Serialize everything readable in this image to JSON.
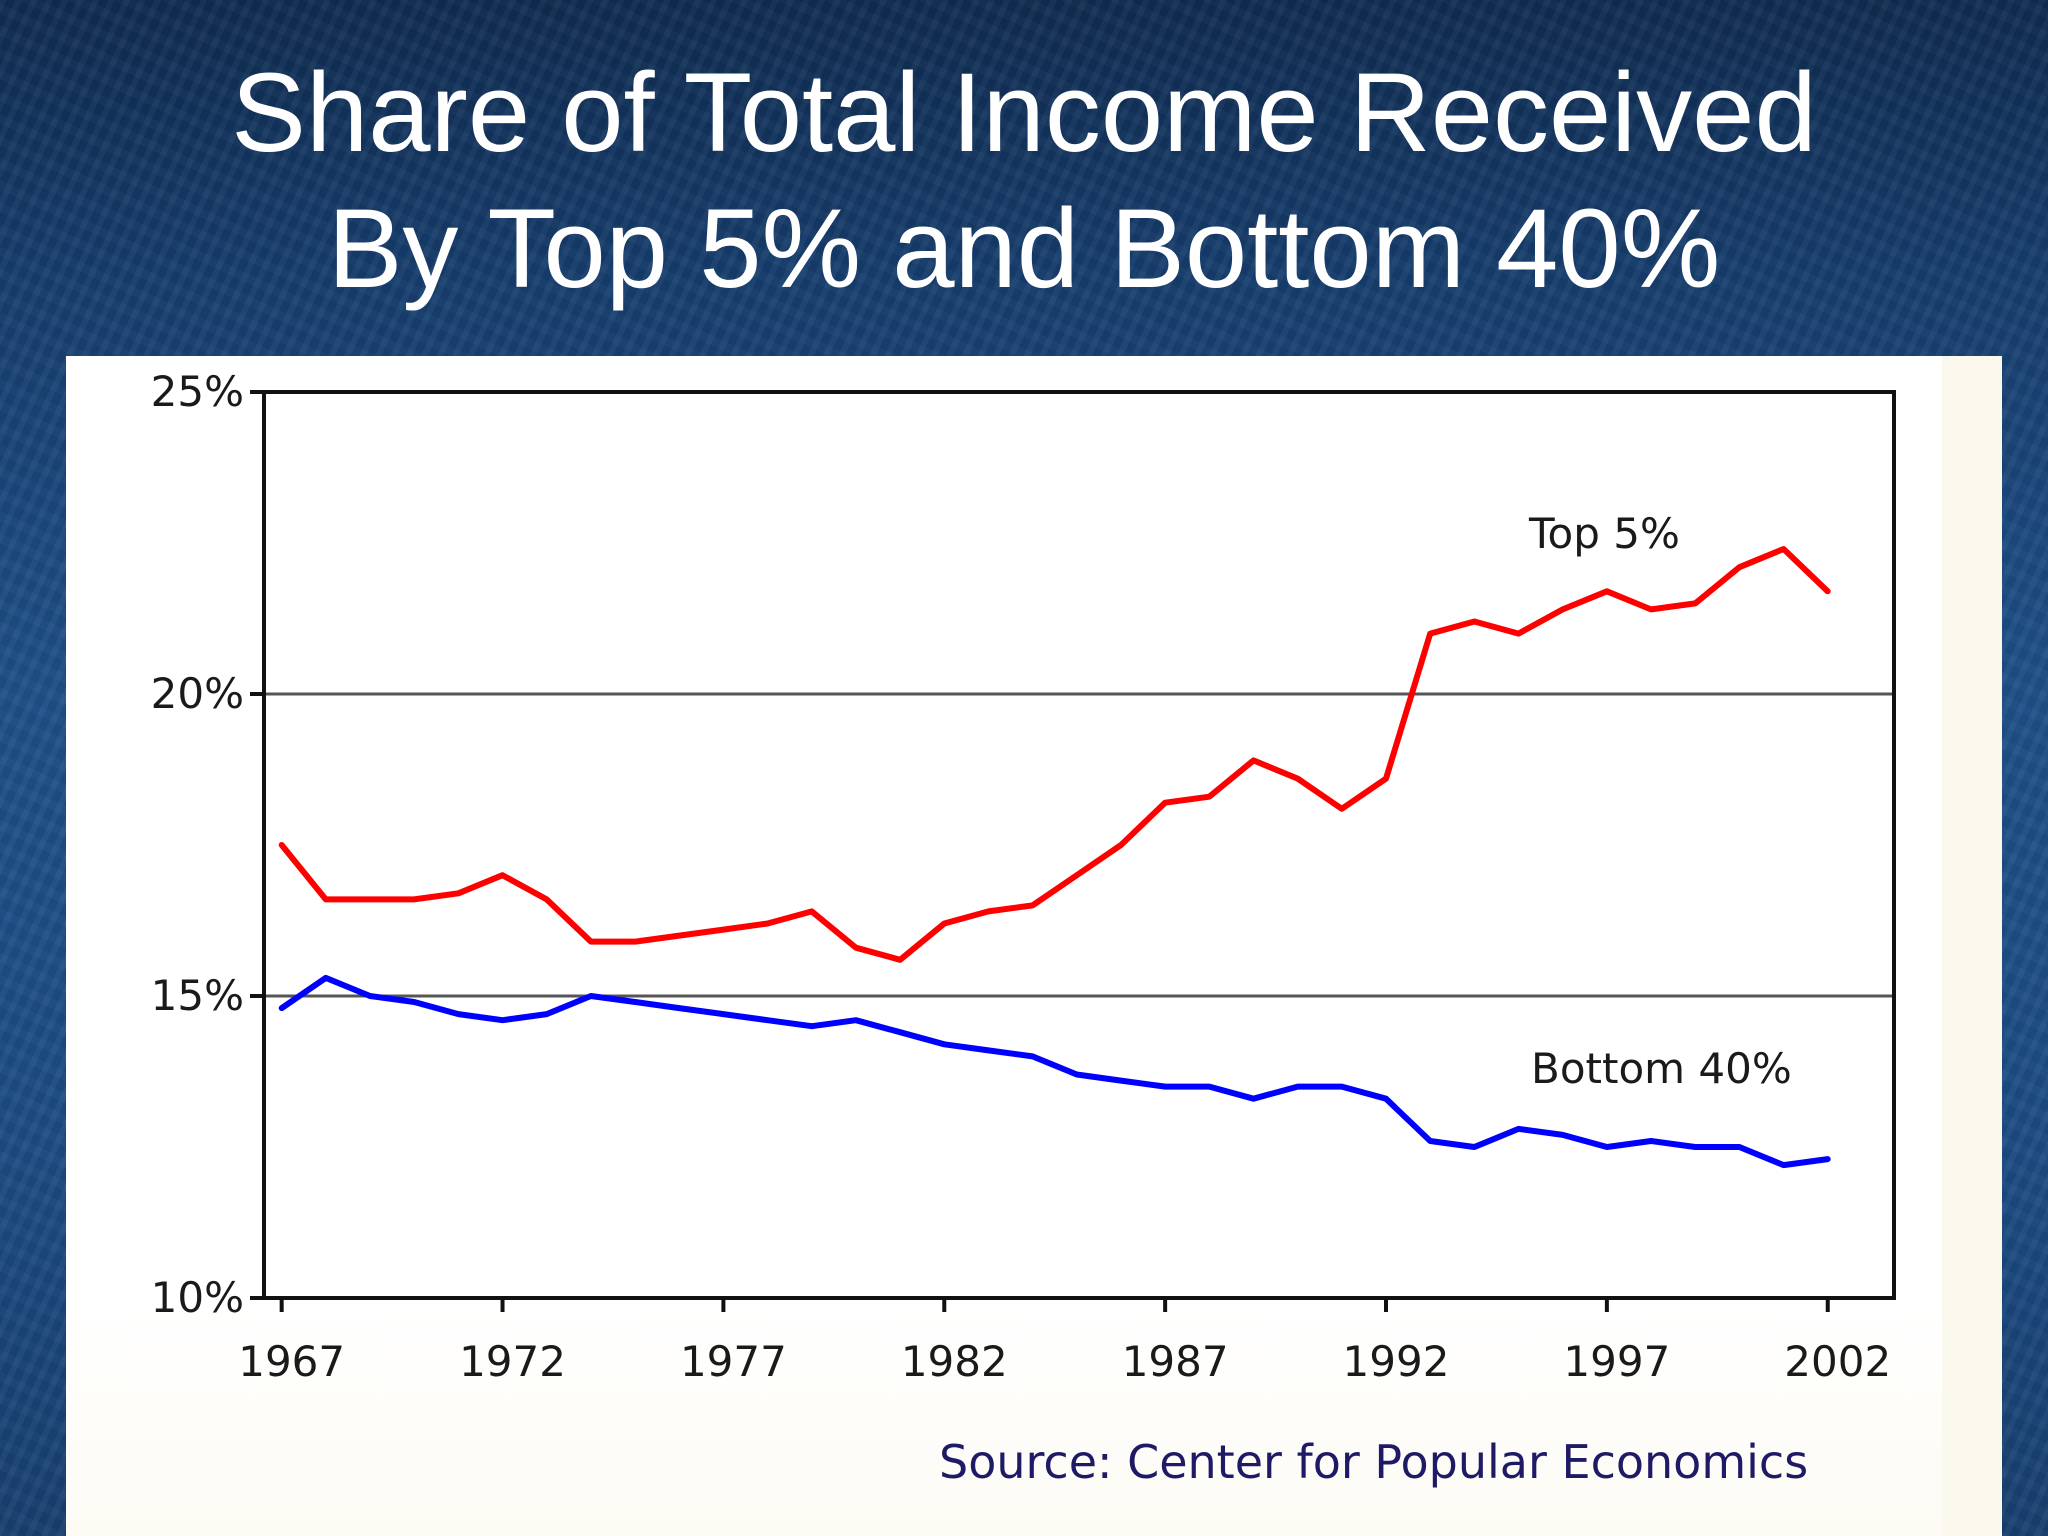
{
  "slide": {
    "title_line1": "Share of Total Income Received",
    "title_line2": "By Top 5% and Bottom 40%",
    "source": "Source: Center for Popular Economics"
  },
  "chart_data": {
    "type": "line",
    "title": "Share of Total Income Received By Top 5% and Bottom 40%",
    "xlabel": "",
    "ylabel": "",
    "x_tick_labels": [
      "1967",
      "1972",
      "1977",
      "1982",
      "1987",
      "1992",
      "1997",
      "2002"
    ],
    "y_tick_labels": [
      "10%",
      "15%",
      "20%",
      "25%"
    ],
    "xlim": [
      1966.6,
      2003.5
    ],
    "ylim": [
      10,
      25
    ],
    "grid": "horizontal",
    "colors": {
      "top": "#ff0000",
      "bottom": "#0000ff"
    },
    "x": [
      1967,
      1968,
      1969,
      1970,
      1971,
      1972,
      1973,
      1974,
      1975,
      1976,
      1977,
      1978,
      1979,
      1980,
      1981,
      1982,
      1983,
      1984,
      1985,
      1986,
      1987,
      1988,
      1989,
      1990,
      1991,
      1992,
      1993,
      1994,
      1995,
      1996,
      1997,
      1998,
      1999,
      2000,
      2001,
      2002
    ],
    "series": [
      {
        "name": "Top 5%",
        "color": "#ff0000",
        "values": [
          17.5,
          16.6,
          16.6,
          16.6,
          16.7,
          17.0,
          16.6,
          15.9,
          15.9,
          16.0,
          16.1,
          16.2,
          16.4,
          15.8,
          15.6,
          16.2,
          16.4,
          16.5,
          17.0,
          17.5,
          18.2,
          18.3,
          18.9,
          18.6,
          18.1,
          18.6,
          21.0,
          21.2,
          21.0,
          21.4,
          21.7,
          21.4,
          21.5,
          22.1,
          22.4,
          21.7
        ]
      },
      {
        "name": "Bottom 40%",
        "color": "#0000ff",
        "values": [
          14.8,
          15.3,
          15.0,
          14.9,
          14.7,
          14.6,
          14.7,
          15.0,
          14.9,
          14.8,
          14.7,
          14.6,
          14.5,
          14.6,
          14.4,
          14.2,
          14.1,
          14.0,
          13.7,
          13.6,
          13.5,
          13.5,
          13.3,
          13.5,
          13.5,
          13.3,
          12.6,
          12.5,
          12.8,
          12.7,
          12.5,
          12.6,
          12.5,
          12.5,
          12.2,
          12.3
        ]
      }
    ]
  }
}
